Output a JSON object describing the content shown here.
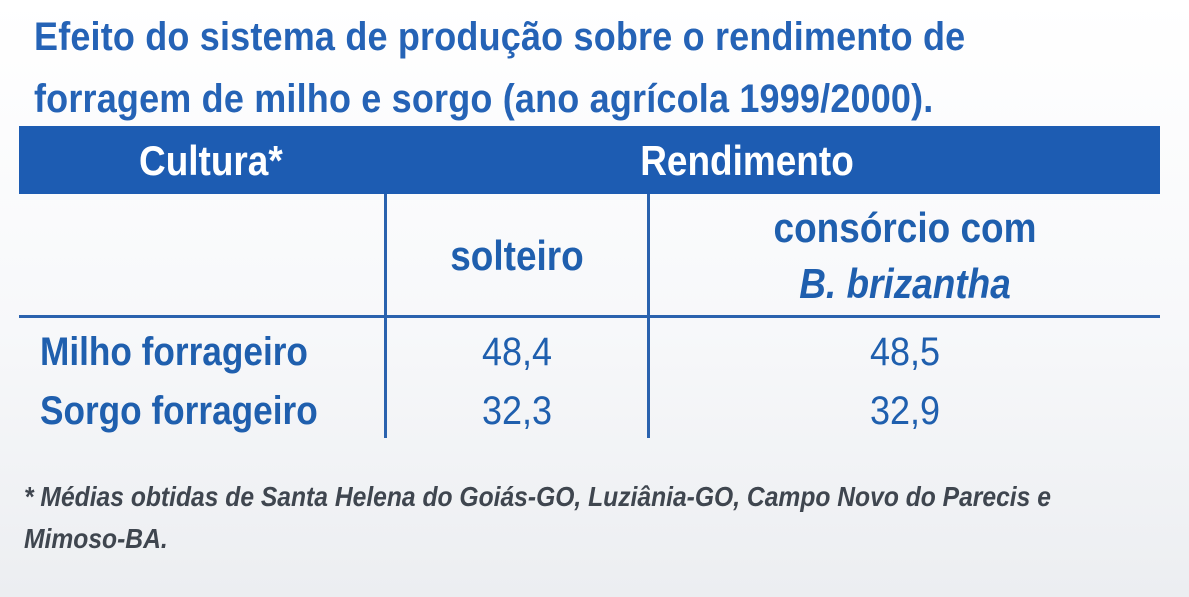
{
  "title": "Efeito do sistema de produção sobre o rendimento de forragem de milho e sorgo (ano agrícola 1999/2000).",
  "table": {
    "header": {
      "cultura": "Cultura*",
      "rendimento": "Rendimento"
    },
    "subheader": {
      "solteiro": "solteiro",
      "consorcio_line1": "consórcio com",
      "consorcio_line2": "B. brizantha"
    },
    "rows": [
      {
        "cultura": "Milho forrageiro",
        "solteiro": "48,4",
        "consorcio": "48,5"
      },
      {
        "cultura": "Sorgo forrageiro",
        "solteiro": "32,3",
        "consorcio": "32,9"
      }
    ]
  },
  "footnote": "* Médias obtidas de Santa Helena do Goiás-GO, Luziânia-GO, Campo Novo do Parecis e Mimoso-BA.",
  "colors": {
    "accent": "#1d5cb2",
    "text": "#1f5fae",
    "footnote": "#3f464f"
  }
}
